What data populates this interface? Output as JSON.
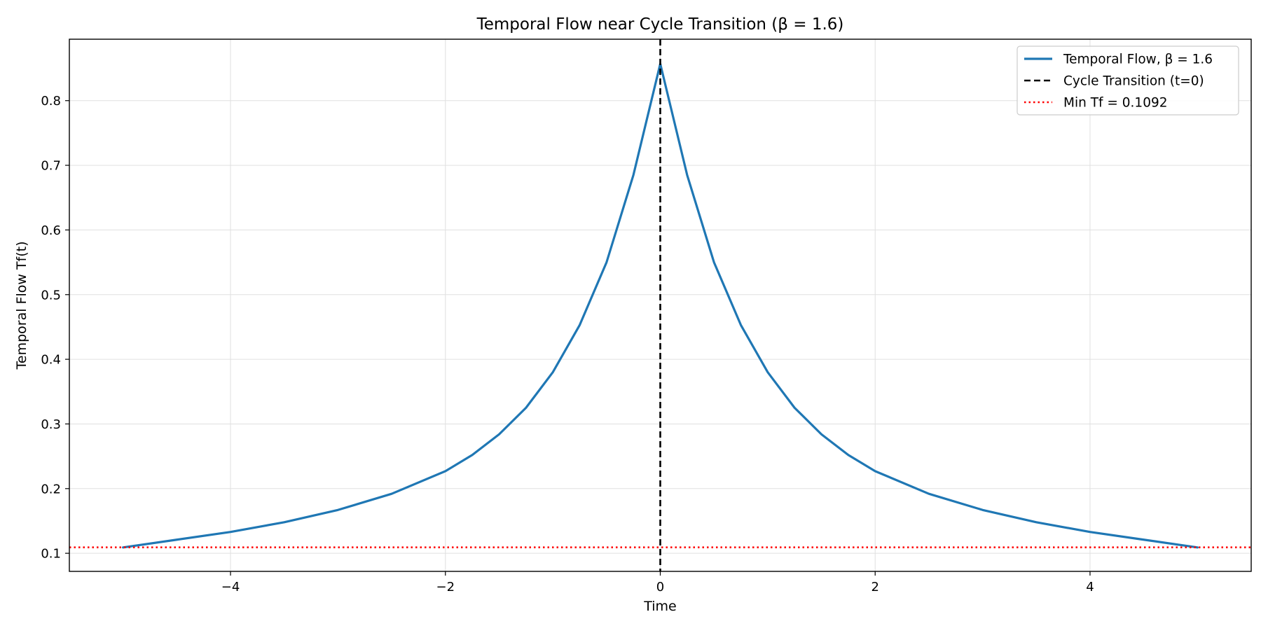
{
  "chart_data": {
    "type": "line",
    "title": "Temporal Flow near Cycle Transition (β = 1.6)",
    "xlabel": "Time",
    "ylabel": "Temporal Flow Tf(t)",
    "xlim": [
      -5.5,
      5.5
    ],
    "ylim": [
      0.072,
      0.895
    ],
    "xticks": [
      -4,
      -2,
      0,
      2,
      4
    ],
    "xtick_labels": [
      "−4",
      "−2",
      "0",
      "2",
      "4"
    ],
    "yticks": [
      0.1,
      0.2,
      0.3,
      0.4,
      0.5,
      0.6,
      0.7,
      0.8
    ],
    "ytick_labels": [
      "0.1",
      "0.2",
      "0.3",
      "0.4",
      "0.5",
      "0.6",
      "0.7",
      "0.8"
    ],
    "grid": true,
    "legend_position": "top-right",
    "series": [
      {
        "name": "Temporal Flow, β = 1.6",
        "color": "#1f77b4",
        "style": "solid",
        "x": [
          -5,
          -4.5,
          -4,
          -3.5,
          -3,
          -2.5,
          -2,
          -1.75,
          -1.5,
          -1.25,
          -1,
          -0.75,
          -0.5,
          -0.25,
          0,
          0.25,
          0.5,
          0.75,
          1,
          1.25,
          1.5,
          1.75,
          2,
          2.5,
          3,
          3.5,
          4,
          4.5,
          5
        ],
        "y": [
          0.109,
          0.121,
          0.133,
          0.148,
          0.167,
          0.192,
          0.227,
          0.252,
          0.284,
          0.325,
          0.38,
          0.453,
          0.55,
          0.685,
          0.857,
          0.685,
          0.55,
          0.453,
          0.38,
          0.325,
          0.284,
          0.252,
          0.227,
          0.192,
          0.167,
          0.148,
          0.133,
          0.121,
          0.109
        ]
      }
    ],
    "reference_lines": [
      {
        "name": "Cycle Transition (t=0)",
        "orientation": "vertical",
        "value": 0,
        "color": "#000000",
        "style": "dashed"
      },
      {
        "name": "Min Tf = 0.1092",
        "orientation": "horizontal",
        "value": 0.1092,
        "color": "#ff0000",
        "style": "dotted"
      }
    ]
  }
}
